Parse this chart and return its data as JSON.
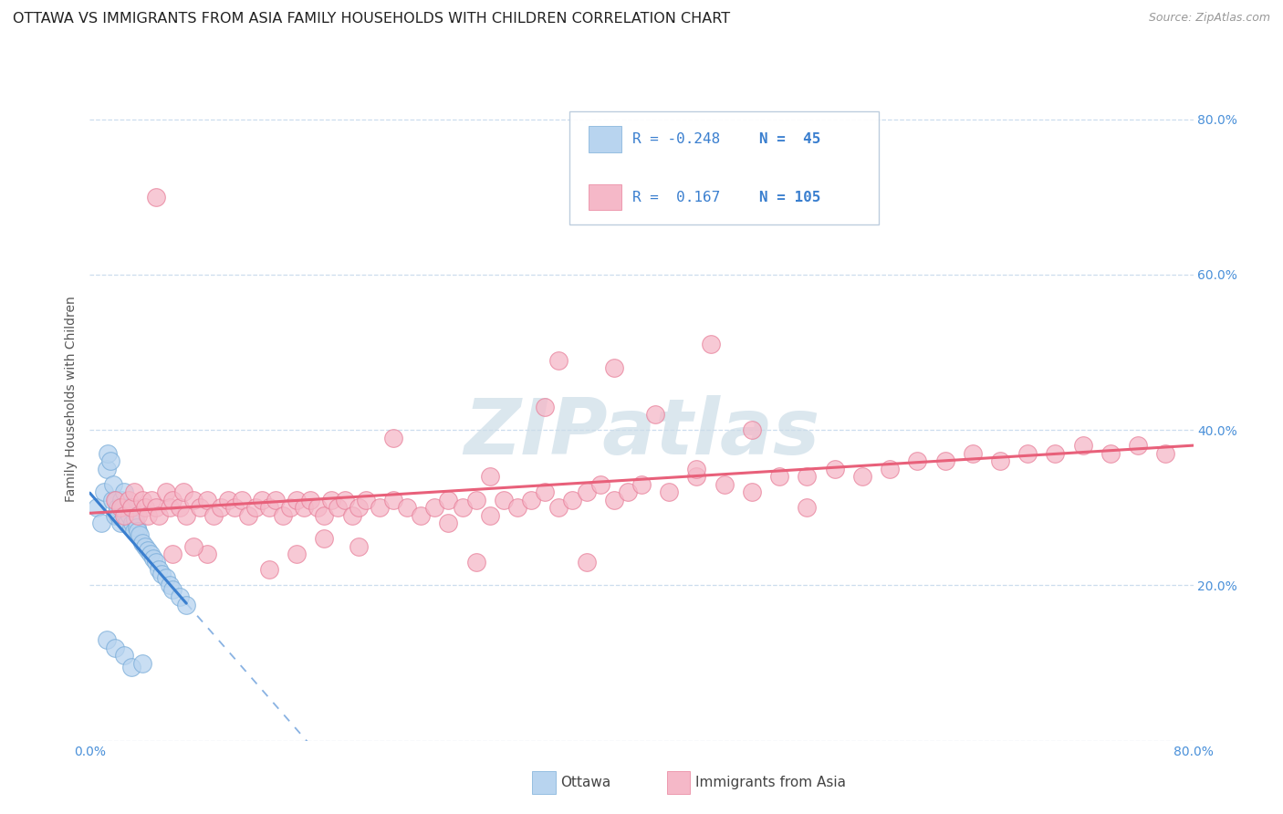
{
  "title": "OTTAWA VS IMMIGRANTS FROM ASIA FAMILY HOUSEHOLDS WITH CHILDREN CORRELATION CHART",
  "source": "Source: ZipAtlas.com",
  "ylabel": "Family Households with Children",
  "xlim": [
    0.0,
    0.8
  ],
  "ylim": [
    0.0,
    0.88
  ],
  "x_ticks": [
    0.0,
    0.1,
    0.2,
    0.3,
    0.4,
    0.5,
    0.6,
    0.7,
    0.8
  ],
  "x_tick_labels": [
    "0.0%",
    "",
    "",
    "",
    "",
    "",
    "",
    "",
    "80.0%"
  ],
  "y_tick_labels_right": [
    "20.0%",
    "40.0%",
    "60.0%",
    "80.0%"
  ],
  "y_ticks_right": [
    0.2,
    0.4,
    0.6,
    0.8
  ],
  "color_ottawa_fill": "#b8d4ef",
  "color_ottawa_edge": "#7aadd9",
  "color_immigrants_fill": "#f5b8c8",
  "color_immigrants_edge": "#e8809a",
  "color_ottawa_line": "#3a7fcf",
  "color_immigrants_line": "#e8607a",
  "watermark_color": "#ccdde8",
  "background_color": "#ffffff",
  "grid_color": "#ccddee",
  "title_fontsize": 11.5,
  "axis_label_fontsize": 10,
  "tick_fontsize": 10,
  "ottawa_x": [
    0.005,
    0.008,
    0.01,
    0.012,
    0.013,
    0.015,
    0.016,
    0.017,
    0.018,
    0.019,
    0.02,
    0.021,
    0.022,
    0.023,
    0.024,
    0.025,
    0.026,
    0.027,
    0.028,
    0.029,
    0.03,
    0.031,
    0.032,
    0.033,
    0.034,
    0.035,
    0.036,
    0.038,
    0.04,
    0.042,
    0.044,
    0.046,
    0.048,
    0.05,
    0.052,
    0.055,
    0.058,
    0.06,
    0.065,
    0.07,
    0.012,
    0.018,
    0.025,
    0.03,
    0.038
  ],
  "ottawa_y": [
    0.3,
    0.28,
    0.32,
    0.35,
    0.37,
    0.36,
    0.31,
    0.33,
    0.29,
    0.31,
    0.3,
    0.29,
    0.28,
    0.31,
    0.3,
    0.32,
    0.29,
    0.28,
    0.3,
    0.29,
    0.275,
    0.28,
    0.27,
    0.285,
    0.275,
    0.27,
    0.265,
    0.255,
    0.25,
    0.245,
    0.24,
    0.235,
    0.23,
    0.22,
    0.215,
    0.21,
    0.2,
    0.195,
    0.185,
    0.175,
    0.13,
    0.12,
    0.11,
    0.095,
    0.1
  ],
  "immigrants_x": [
    0.018,
    0.022,
    0.025,
    0.028,
    0.03,
    0.032,
    0.035,
    0.038,
    0.04,
    0.042,
    0.045,
    0.048,
    0.05,
    0.055,
    0.058,
    0.06,
    0.065,
    0.068,
    0.07,
    0.075,
    0.08,
    0.085,
    0.09,
    0.095,
    0.1,
    0.105,
    0.11,
    0.115,
    0.12,
    0.125,
    0.13,
    0.135,
    0.14,
    0.145,
    0.15,
    0.155,
    0.16,
    0.165,
    0.17,
    0.175,
    0.18,
    0.185,
    0.19,
    0.195,
    0.2,
    0.21,
    0.22,
    0.23,
    0.24,
    0.25,
    0.26,
    0.27,
    0.28,
    0.29,
    0.3,
    0.31,
    0.32,
    0.33,
    0.34,
    0.35,
    0.36,
    0.37,
    0.38,
    0.39,
    0.4,
    0.42,
    0.44,
    0.46,
    0.48,
    0.5,
    0.52,
    0.54,
    0.56,
    0.58,
    0.6,
    0.62,
    0.64,
    0.66,
    0.68,
    0.7,
    0.72,
    0.74,
    0.76,
    0.78,
    0.048,
    0.48,
    0.22,
    0.34,
    0.45,
    0.38,
    0.29,
    0.41,
    0.33,
    0.26,
    0.17,
    0.195,
    0.085,
    0.13,
    0.075,
    0.06,
    0.15,
    0.28,
    0.36,
    0.44,
    0.52
  ],
  "immigrants_y": [
    0.31,
    0.3,
    0.29,
    0.31,
    0.3,
    0.32,
    0.29,
    0.31,
    0.3,
    0.29,
    0.31,
    0.3,
    0.29,
    0.32,
    0.3,
    0.31,
    0.3,
    0.32,
    0.29,
    0.31,
    0.3,
    0.31,
    0.29,
    0.3,
    0.31,
    0.3,
    0.31,
    0.29,
    0.3,
    0.31,
    0.3,
    0.31,
    0.29,
    0.3,
    0.31,
    0.3,
    0.31,
    0.3,
    0.29,
    0.31,
    0.3,
    0.31,
    0.29,
    0.3,
    0.31,
    0.3,
    0.31,
    0.3,
    0.29,
    0.3,
    0.31,
    0.3,
    0.31,
    0.29,
    0.31,
    0.3,
    0.31,
    0.32,
    0.3,
    0.31,
    0.32,
    0.33,
    0.31,
    0.32,
    0.33,
    0.32,
    0.34,
    0.33,
    0.32,
    0.34,
    0.34,
    0.35,
    0.34,
    0.35,
    0.36,
    0.36,
    0.37,
    0.36,
    0.37,
    0.37,
    0.38,
    0.37,
    0.38,
    0.37,
    0.7,
    0.4,
    0.39,
    0.49,
    0.51,
    0.48,
    0.34,
    0.42,
    0.43,
    0.28,
    0.26,
    0.25,
    0.24,
    0.22,
    0.25,
    0.24,
    0.24,
    0.23,
    0.23,
    0.35,
    0.3
  ]
}
